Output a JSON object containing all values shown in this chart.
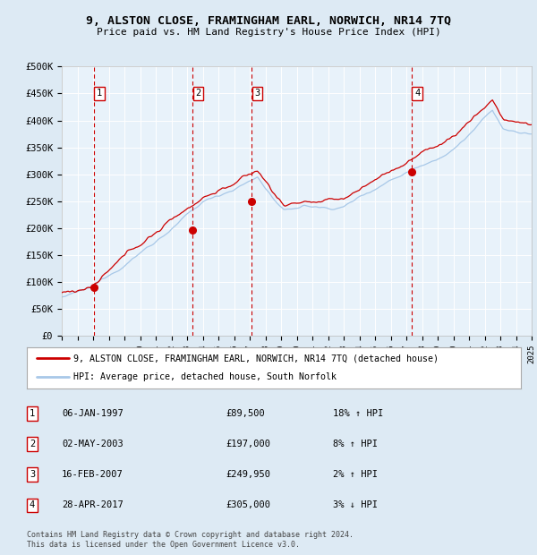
{
  "title": "9, ALSTON CLOSE, FRAMINGHAM EARL, NORWICH, NR14 7TQ",
  "subtitle": "Price paid vs. HM Land Registry's House Price Index (HPI)",
  "ylim": [
    0,
    500000
  ],
  "yticks": [
    0,
    50000,
    100000,
    150000,
    200000,
    250000,
    300000,
    350000,
    400000,
    450000,
    500000
  ],
  "ytick_labels": [
    "£0",
    "£50K",
    "£100K",
    "£150K",
    "£200K",
    "£250K",
    "£300K",
    "£350K",
    "£400K",
    "£450K",
    "£500K"
  ],
  "x_start_year": 1995,
  "x_end_year": 2025,
  "bg_color": "#ddeaf4",
  "plot_bg_color": "#e8f2fa",
  "grid_color": "#ffffff",
  "hpi_color": "#a8c8e8",
  "price_color": "#cc0000",
  "transactions": [
    {
      "label": 1,
      "date_year": 1997.03,
      "price": 89500
    },
    {
      "label": 2,
      "date_year": 2003.35,
      "price": 197000
    },
    {
      "label": 3,
      "date_year": 2007.12,
      "price": 249950
    },
    {
      "label": 4,
      "date_year": 2017.32,
      "price": 305000
    }
  ],
  "transaction_table": [
    {
      "num": 1,
      "date": "06-JAN-1997",
      "price": "£89,500",
      "hpi": "18% ↑ HPI"
    },
    {
      "num": 2,
      "date": "02-MAY-2003",
      "price": "£197,000",
      "hpi": "8% ↑ HPI"
    },
    {
      "num": 3,
      "date": "16-FEB-2007",
      "price": "£249,950",
      "hpi": "2% ↑ HPI"
    },
    {
      "num": 4,
      "date": "28-APR-2017",
      "price": "£305,000",
      "hpi": "3% ↓ HPI"
    }
  ],
  "legend_red_label": "9, ALSTON CLOSE, FRAMINGHAM EARL, NORWICH, NR14 7TQ (detached house)",
  "legend_blue_label": "HPI: Average price, detached house, South Norfolk",
  "footer": "Contains HM Land Registry data © Crown copyright and database right 2024.\nThis data is licensed under the Open Government Licence v3.0."
}
